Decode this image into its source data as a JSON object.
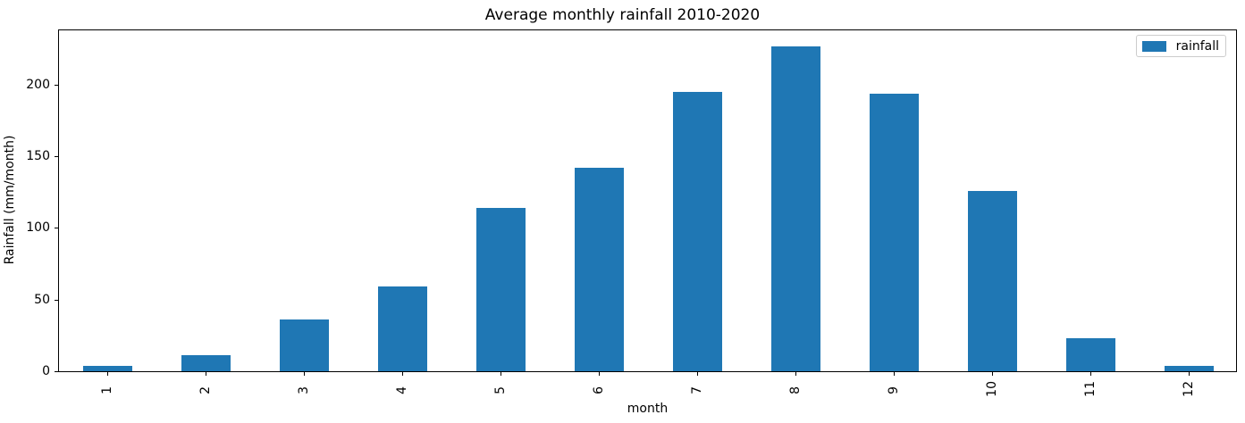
{
  "chart_data": {
    "type": "bar",
    "title": "Average monthly rainfall 2010-2020",
    "xlabel": "month",
    "ylabel": "Rainfall (mm/month)",
    "categories": [
      "1",
      "2",
      "3",
      "4",
      "5",
      "6",
      "7",
      "8",
      "9",
      "10",
      "11",
      "12"
    ],
    "series": [
      {
        "name": "rainfall",
        "color": "#1f77b4",
        "values": [
          4,
          11,
          36,
          59,
          114,
          142,
          195,
          227,
          194,
          126,
          23,
          4
        ]
      }
    ],
    "ylim": [
      0,
      238
    ],
    "yticks": [
      0,
      50,
      100,
      150,
      200
    ],
    "grid": false,
    "legend": {
      "visible": true,
      "position": "upper-right",
      "entries": [
        "rainfall"
      ]
    }
  },
  "colors": {
    "bar": "#1f77b4",
    "spine": "#000000",
    "legend_border": "#cccccc",
    "background": "#ffffff",
    "text": "#000000"
  }
}
